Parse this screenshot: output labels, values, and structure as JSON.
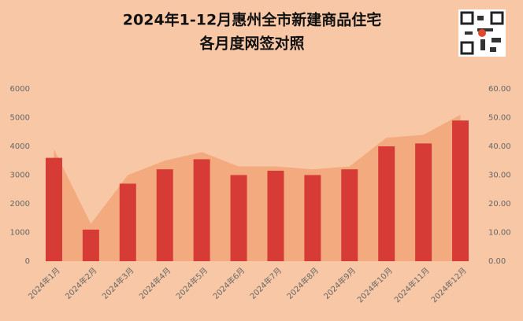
{
  "chart_data": {
    "type": "bar-area",
    "title": "2024年1-12月惠州全市新建商品住宅",
    "subtitle": "各月度网签对照",
    "categories": [
      "2024年1月",
      "2024年2月",
      "2024年3月",
      "2024年4月",
      "2024年5月",
      "2024年6月",
      "2024年7月",
      "2024年8月",
      "2024年9月",
      "2024年10月",
      "2024年11月",
      "2024年12月"
    ],
    "series": [
      {
        "type": "bar",
        "color": "#d63b35",
        "values": [
          3600,
          1100,
          2700,
          3200,
          3550,
          3000,
          3150,
          3000,
          3200,
          4000,
          4100,
          4900
        ]
      },
      {
        "type": "area",
        "axis": "y2",
        "color": "#f0a070",
        "values": [
          39,
          13,
          30,
          35,
          38,
          33,
          33,
          32,
          33,
          43,
          44,
          51
        ]
      }
    ],
    "ylim": [
      0,
      6000
    ],
    "yticks": [
      0,
      1000,
      2000,
      3000,
      4000,
      5000,
      6000
    ],
    "y2lim": [
      0,
      60
    ],
    "y2ticks": [
      {
        "value": 0,
        "label": "0.00"
      },
      {
        "value": 10,
        "label": "10.00"
      },
      {
        "value": 20,
        "label": "20.00"
      },
      {
        "value": 30,
        "label": "30.00"
      },
      {
        "value": 40,
        "label": "40.00"
      },
      {
        "value": 50,
        "label": "50.00"
      },
      {
        "value": 60,
        "label": "60.00"
      }
    ]
  }
}
